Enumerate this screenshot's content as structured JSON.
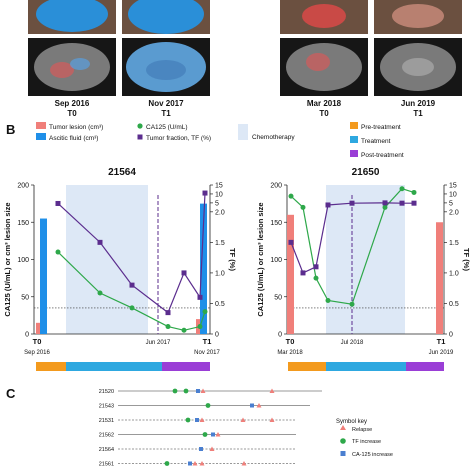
{
  "panel_a": {
    "images": [
      {
        "name": "ct-21564-t0",
        "date": "Sep 2016",
        "time": "T0"
      },
      {
        "name": "ct-21564-t1",
        "date": "Nov 2017",
        "time": "T1"
      },
      {
        "name": "ct-21650-t0",
        "date": "Mar 2018",
        "time": "T0"
      },
      {
        "name": "ct-21650-t1",
        "date": "Jun 2019",
        "time": "T1"
      }
    ]
  },
  "panel_b": {
    "letter": "B",
    "legend": {
      "tumor_lesion": "Tumor lesion (cm³)",
      "ascitic_fluid": "Ascitic fluid (cm³)",
      "ca125": "CA125 (U/mL)",
      "tumor_fraction": "Tumor fraction, TF (%)",
      "chemotherapy": "Chemotherapy",
      "pre_treatment": "Pre-treatment",
      "treatment": "Treatment",
      "post_treatment": "Post-treatment"
    },
    "colors": {
      "tumor_lesion": "#f07f7a",
      "ascitic_fluid": "#1f8fe8",
      "ca125": "#2ea84a",
      "tumor_fraction": "#5b2d8e",
      "chemotherapy": "#dde8f6",
      "pre_treatment": "#f39a1e",
      "treatment": "#2ea8e0",
      "post_treatment": "#9a3ed6"
    }
  },
  "panel_c": {
    "letter": "C",
    "rows": [
      "21520",
      "21543",
      "21531",
      "21562",
      "21564",
      "21561"
    ],
    "symbol_key_title": "Symbol key",
    "symbol_key": [
      "Relapse",
      "TF increase",
      "CA-125 increase"
    ]
  },
  "chart_data": [
    {
      "type": "line",
      "title": "21564",
      "ylabel": "CA125 (U/mL) or cm³ lesion size",
      "y2label": "TF (%)",
      "ylim": [
        0,
        200
      ],
      "yticks": [
        0,
        50,
        100,
        150,
        200
      ],
      "y2ticks": [
        "0",
        "0.5",
        "1.0",
        "1.5",
        "2.0",
        "5",
        "10",
        "15"
      ],
      "xticks": [
        {
          "label": "T0",
          "sub": "Sep 2016"
        },
        {
          "label": "T1",
          "sub": "Nov 2017"
        }
      ],
      "x_annotation": "Jun 2017",
      "series": [
        {
          "name": "CA125 (U/mL)",
          "x": [
            0,
            1,
            2,
            3,
            4,
            5,
            6
          ],
          "values": [
            110,
            55,
            35,
            10,
            5,
            10,
            30
          ]
        },
        {
          "name": "Tumor fraction, TF (%)",
          "x": [
            0,
            1,
            2,
            3,
            4,
            5,
            6
          ],
          "values": [
            4.8,
            1.5,
            0.8,
            0.35,
            1.0,
            0.6,
            10.5
          ]
        }
      ],
      "bars": [
        {
          "name": "Tumor lesion (cm³)",
          "time": "T0",
          "value": 15
        },
        {
          "name": "Ascitic fluid (cm³)",
          "time": "T0",
          "value": 155
        },
        {
          "name": "Tumor lesion (cm³)",
          "time": "T1",
          "value": 20
        },
        {
          "name": "Ascitic fluid (cm³)",
          "time": "T1",
          "value": 175
        }
      ],
      "threshold": 35,
      "chemotherapy_band": [
        1,
        4
      ]
    },
    {
      "type": "line",
      "title": "21650",
      "ylabel": "CA125 (U/mL) or cm³ lesion size",
      "y2label": "TF (%)",
      "ylim": [
        0,
        200
      ],
      "yticks": [
        0,
        50,
        100,
        150,
        200
      ],
      "y2ticks": [
        "0",
        "0.5",
        "1.0",
        "1.5",
        "2.0",
        "5",
        "10",
        "15"
      ],
      "xticks": [
        {
          "label": "T0",
          "sub": "Mar 2018"
        },
        {
          "label": "T1",
          "sub": "Jun 2019"
        }
      ],
      "x_annotation": "Jul 2018",
      "series": [
        {
          "name": "CA125 (U/mL)",
          "x": [
            0,
            1,
            2,
            3,
            4,
            5,
            6,
            7
          ],
          "values": [
            185,
            170,
            75,
            45,
            40,
            170,
            195,
            190
          ]
        },
        {
          "name": "Tumor fraction, TF (%)",
          "x": [
            0,
            1,
            2,
            3,
            4,
            5,
            6,
            7
          ],
          "values": [
            1.5,
            1.0,
            1.1,
            4.3,
            4.9,
            5.0,
            4.9,
            4.9
          ]
        }
      ],
      "bars": [
        {
          "name": "Tumor lesion (cm³)",
          "time": "T0",
          "value": 160
        },
        {
          "name": "Tumor lesion (cm³)",
          "time": "T1",
          "value": 150
        }
      ],
      "threshold": 35,
      "chemotherapy_band": [
        2,
        4
      ]
    }
  ]
}
